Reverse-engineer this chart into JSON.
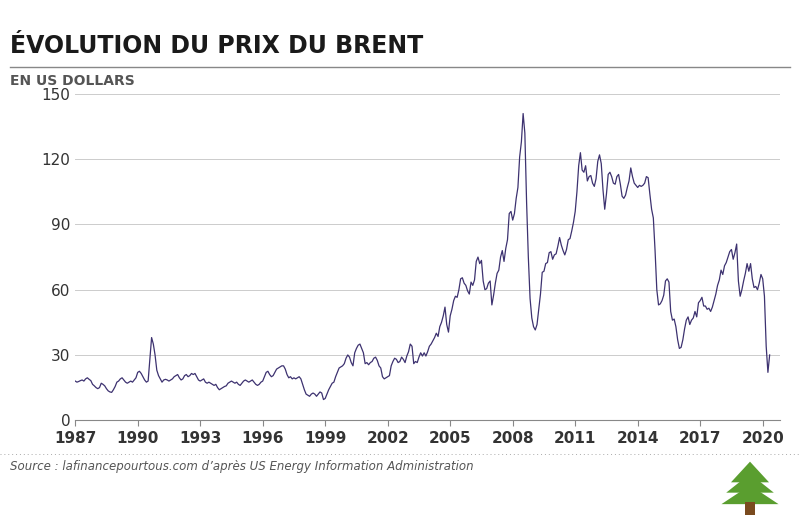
{
  "title": "ÉVOLUTION DU PRIX DU BRENT",
  "subtitle": "EN US DOLLARS",
  "source": "Source : lafinancepourtous.com d’après US Energy Information Administration",
  "line_color": "#3d3270",
  "background_color": "#ffffff",
  "grid_color": "#cccccc",
  "ylim": [
    0,
    150
  ],
  "yticks": [
    0,
    30,
    60,
    90,
    120,
    150
  ],
  "xticks": [
    1987,
    1990,
    1993,
    1996,
    1999,
    2002,
    2005,
    2008,
    2011,
    2014,
    2017,
    2020
  ],
  "title_fontsize": 17,
  "subtitle_fontsize": 10,
  "tick_fontsize": 11,
  "line_width": 0.9,
  "brent_data": {
    "dates": [
      1987.0,
      1987.083,
      1987.167,
      1987.25,
      1987.333,
      1987.417,
      1987.5,
      1987.583,
      1987.667,
      1987.75,
      1987.833,
      1987.917,
      1988.0,
      1988.083,
      1988.167,
      1988.25,
      1988.333,
      1988.417,
      1988.5,
      1988.583,
      1988.667,
      1988.75,
      1988.833,
      1988.917,
      1989.0,
      1989.083,
      1989.167,
      1989.25,
      1989.333,
      1989.417,
      1989.5,
      1989.583,
      1989.667,
      1989.75,
      1989.833,
      1989.917,
      1990.0,
      1990.083,
      1990.167,
      1990.25,
      1990.333,
      1990.417,
      1990.5,
      1990.583,
      1990.667,
      1990.75,
      1990.833,
      1990.917,
      1991.0,
      1991.083,
      1991.167,
      1991.25,
      1991.333,
      1991.417,
      1991.5,
      1991.583,
      1991.667,
      1991.75,
      1991.833,
      1991.917,
      1992.0,
      1992.083,
      1992.167,
      1992.25,
      1992.333,
      1992.417,
      1992.5,
      1992.583,
      1992.667,
      1992.75,
      1992.833,
      1992.917,
      1993.0,
      1993.083,
      1993.167,
      1993.25,
      1993.333,
      1993.417,
      1993.5,
      1993.583,
      1993.667,
      1993.75,
      1993.833,
      1993.917,
      1994.0,
      1994.083,
      1994.167,
      1994.25,
      1994.333,
      1994.417,
      1994.5,
      1994.583,
      1994.667,
      1994.75,
      1994.833,
      1994.917,
      1995.0,
      1995.083,
      1995.167,
      1995.25,
      1995.333,
      1995.417,
      1995.5,
      1995.583,
      1995.667,
      1995.75,
      1995.833,
      1995.917,
      1996.0,
      1996.083,
      1996.167,
      1996.25,
      1996.333,
      1996.417,
      1996.5,
      1996.583,
      1996.667,
      1996.75,
      1996.833,
      1996.917,
      1997.0,
      1997.083,
      1997.167,
      1997.25,
      1997.333,
      1997.417,
      1997.5,
      1997.583,
      1997.667,
      1997.75,
      1997.833,
      1997.917,
      1998.0,
      1998.083,
      1998.167,
      1998.25,
      1998.333,
      1998.417,
      1998.5,
      1998.583,
      1998.667,
      1998.75,
      1998.833,
      1998.917,
      1999.0,
      1999.083,
      1999.167,
      1999.25,
      1999.333,
      1999.417,
      1999.5,
      1999.583,
      1999.667,
      1999.75,
      1999.833,
      1999.917,
      2000.0,
      2000.083,
      2000.167,
      2000.25,
      2000.333,
      2000.417,
      2000.5,
      2000.583,
      2000.667,
      2000.75,
      2000.833,
      2000.917,
      2001.0,
      2001.083,
      2001.167,
      2001.25,
      2001.333,
      2001.417,
      2001.5,
      2001.583,
      2001.667,
      2001.75,
      2001.833,
      2001.917,
      2002.0,
      2002.083,
      2002.167,
      2002.25,
      2002.333,
      2002.417,
      2002.5,
      2002.583,
      2002.667,
      2002.75,
      2002.833,
      2002.917,
      2003.0,
      2003.083,
      2003.167,
      2003.25,
      2003.333,
      2003.417,
      2003.5,
      2003.583,
      2003.667,
      2003.75,
      2003.833,
      2003.917,
      2004.0,
      2004.083,
      2004.167,
      2004.25,
      2004.333,
      2004.417,
      2004.5,
      2004.583,
      2004.667,
      2004.75,
      2004.833,
      2004.917,
      2005.0,
      2005.083,
      2005.167,
      2005.25,
      2005.333,
      2005.417,
      2005.5,
      2005.583,
      2005.667,
      2005.75,
      2005.833,
      2005.917,
      2006.0,
      2006.083,
      2006.167,
      2006.25,
      2006.333,
      2006.417,
      2006.5,
      2006.583,
      2006.667,
      2006.75,
      2006.833,
      2006.917,
      2007.0,
      2007.083,
      2007.167,
      2007.25,
      2007.333,
      2007.417,
      2007.5,
      2007.583,
      2007.667,
      2007.75,
      2007.833,
      2007.917,
      2008.0,
      2008.083,
      2008.167,
      2008.25,
      2008.333,
      2008.417,
      2008.5,
      2008.583,
      2008.667,
      2008.75,
      2008.833,
      2008.917,
      2009.0,
      2009.083,
      2009.167,
      2009.25,
      2009.333,
      2009.417,
      2009.5,
      2009.583,
      2009.667,
      2009.75,
      2009.833,
      2009.917,
      2010.0,
      2010.083,
      2010.167,
      2010.25,
      2010.333,
      2010.417,
      2010.5,
      2010.583,
      2010.667,
      2010.75,
      2010.833,
      2010.917,
      2011.0,
      2011.083,
      2011.167,
      2011.25,
      2011.333,
      2011.417,
      2011.5,
      2011.583,
      2011.667,
      2011.75,
      2011.833,
      2011.917,
      2012.0,
      2012.083,
      2012.167,
      2012.25,
      2012.333,
      2012.417,
      2012.5,
      2012.583,
      2012.667,
      2012.75,
      2012.833,
      2012.917,
      2013.0,
      2013.083,
      2013.167,
      2013.25,
      2013.333,
      2013.417,
      2013.5,
      2013.583,
      2013.667,
      2013.75,
      2013.833,
      2013.917,
      2014.0,
      2014.083,
      2014.167,
      2014.25,
      2014.333,
      2014.417,
      2014.5,
      2014.583,
      2014.667,
      2014.75,
      2014.833,
      2014.917,
      2015.0,
      2015.083,
      2015.167,
      2015.25,
      2015.333,
      2015.417,
      2015.5,
      2015.583,
      2015.667,
      2015.75,
      2015.833,
      2015.917,
      2016.0,
      2016.083,
      2016.167,
      2016.25,
      2016.333,
      2016.417,
      2016.5,
      2016.583,
      2016.667,
      2016.75,
      2016.833,
      2016.917,
      2017.0,
      2017.083,
      2017.167,
      2017.25,
      2017.333,
      2017.417,
      2017.5,
      2017.583,
      2017.667,
      2017.75,
      2017.833,
      2017.917,
      2018.0,
      2018.083,
      2018.167,
      2018.25,
      2018.333,
      2018.417,
      2018.5,
      2018.583,
      2018.667,
      2018.75,
      2018.833,
      2018.917,
      2019.0,
      2019.083,
      2019.167,
      2019.25,
      2019.333,
      2019.417,
      2019.5,
      2019.583,
      2019.667,
      2019.75,
      2019.833,
      2019.917,
      2020.0,
      2020.083,
      2020.167,
      2020.25,
      2020.333
    ],
    "prices": [
      18.0,
      17.5,
      17.8,
      18.2,
      18.5,
      18.0,
      19.0,
      19.5,
      18.8,
      18.2,
      16.5,
      15.8,
      15.0,
      14.5,
      15.0,
      17.0,
      16.5,
      15.8,
      14.5,
      13.5,
      13.0,
      12.8,
      14.0,
      15.5,
      17.5,
      18.0,
      19.0,
      19.5,
      18.5,
      17.5,
      17.0,
      17.5,
      18.0,
      17.5,
      18.5,
      19.5,
      22.0,
      22.5,
      21.5,
      20.0,
      18.5,
      17.5,
      18.0,
      28.0,
      38.0,
      35.0,
      30.0,
      23.0,
      20.5,
      19.0,
      17.5,
      18.5,
      18.8,
      18.5,
      18.0,
      18.5,
      19.0,
      20.0,
      20.5,
      21.0,
      19.5,
      18.5,
      19.0,
      20.5,
      21.0,
      20.0,
      20.5,
      21.5,
      21.0,
      21.5,
      20.0,
      18.5,
      18.0,
      18.5,
      19.0,
      17.5,
      17.0,
      17.5,
      17.0,
      16.5,
      16.0,
      16.5,
      15.0,
      14.0,
      14.5,
      15.0,
      15.5,
      15.8,
      17.0,
      17.5,
      18.0,
      17.5,
      17.0,
      17.5,
      16.5,
      16.0,
      17.0,
      18.0,
      18.5,
      18.0,
      17.5,
      18.0,
      18.5,
      17.5,
      16.5,
      16.0,
      16.5,
      17.5,
      18.0,
      20.0,
      22.0,
      22.5,
      21.0,
      20.0,
      20.5,
      22.0,
      23.5,
      24.0,
      24.5,
      25.0,
      25.0,
      23.5,
      21.0,
      19.5,
      20.0,
      19.0,
      19.5,
      19.0,
      19.5,
      20.0,
      19.0,
      16.5,
      14.0,
      12.0,
      11.5,
      11.0,
      12.0,
      12.5,
      12.0,
      11.0,
      12.0,
      13.0,
      12.5,
      9.5,
      10.0,
      12.0,
      14.0,
      15.5,
      17.0,
      17.5,
      20.0,
      22.0,
      24.0,
      24.5,
      25.0,
      26.0,
      28.5,
      30.0,
      29.0,
      26.5,
      25.0,
      31.0,
      33.0,
      34.5,
      35.0,
      33.0,
      31.0,
      26.0,
      26.5,
      25.5,
      26.5,
      27.0,
      28.5,
      29.0,
      27.5,
      25.0,
      24.0,
      20.0,
      19.0,
      19.5,
      20.0,
      20.5,
      25.0,
      27.0,
      28.5,
      28.0,
      26.5,
      27.0,
      29.0,
      28.0,
      26.5,
      29.5,
      31.5,
      35.0,
      34.0,
      26.0,
      27.0,
      26.5,
      29.0,
      31.0,
      29.5,
      31.0,
      29.5,
      31.5,
      34.0,
      35.0,
      36.5,
      38.0,
      40.0,
      38.5,
      43.0,
      45.0,
      48.0,
      52.0,
      44.0,
      40.5,
      48.0,
      51.0,
      55.0,
      57.0,
      56.5,
      60.0,
      65.0,
      65.5,
      63.0,
      62.0,
      59.5,
      58.0,
      63.5,
      62.0,
      64.5,
      73.0,
      75.0,
      72.0,
      73.5,
      64.0,
      60.0,
      60.5,
      63.0,
      64.0,
      53.0,
      57.5,
      63.0,
      67.5,
      69.0,
      75.0,
      78.0,
      73.0,
      79.0,
      83.0,
      95.0,
      96.0,
      92.0,
      95.0,
      102.0,
      107.0,
      121.0,
      128.0,
      141.0,
      132.0,
      100.0,
      75.0,
      56.0,
      47.0,
      43.0,
      41.5,
      44.0,
      51.0,
      58.0,
      68.0,
      68.5,
      72.0,
      72.5,
      77.0,
      77.5,
      74.0,
      76.0,
      76.5,
      80.0,
      84.0,
      80.5,
      78.0,
      76.0,
      78.5,
      83.0,
      83.5,
      87.0,
      91.0,
      96.0,
      105.0,
      117.0,
      123.0,
      115.0,
      114.0,
      117.0,
      110.0,
      112.0,
      112.5,
      109.0,
      107.5,
      111.0,
      119.0,
      122.0,
      118.0,
      106.0,
      97.0,
      104.0,
      113.0,
      114.0,
      112.0,
      109.0,
      108.5,
      112.0,
      113.0,
      108.5,
      103.0,
      102.0,
      103.5,
      107.0,
      110.0,
      116.0,
      112.0,
      109.0,
      108.0,
      107.0,
      108.0,
      107.5,
      108.0,
      109.0,
      112.0,
      111.5,
      104.0,
      97.0,
      93.0,
      78.0,
      60.0,
      53.0,
      53.5,
      55.0,
      57.5,
      64.0,
      65.0,
      63.5,
      50.0,
      46.0,
      46.5,
      43.0,
      37.0,
      33.0,
      33.5,
      37.0,
      42.0,
      46.0,
      47.5,
      44.0,
      46.0,
      47.0,
      50.0,
      47.5,
      54.0,
      55.0,
      56.5,
      52.5,
      52.5,
      51.0,
      51.5,
      50.0,
      52.0,
      55.0,
      58.0,
      62.0,
      64.5,
      69.0,
      67.0,
      71.0,
      72.5,
      75.0,
      77.5,
      78.5,
      74.0,
      77.0,
      81.0,
      64.0,
      57.0,
      60.0,
      64.0,
      67.5,
      72.0,
      68.5,
      72.0,
      65.0,
      61.0,
      61.5,
      60.0,
      63.0,
      67.0,
      65.0,
      57.0,
      34.0,
      22.0,
      30.0
    ]
  }
}
